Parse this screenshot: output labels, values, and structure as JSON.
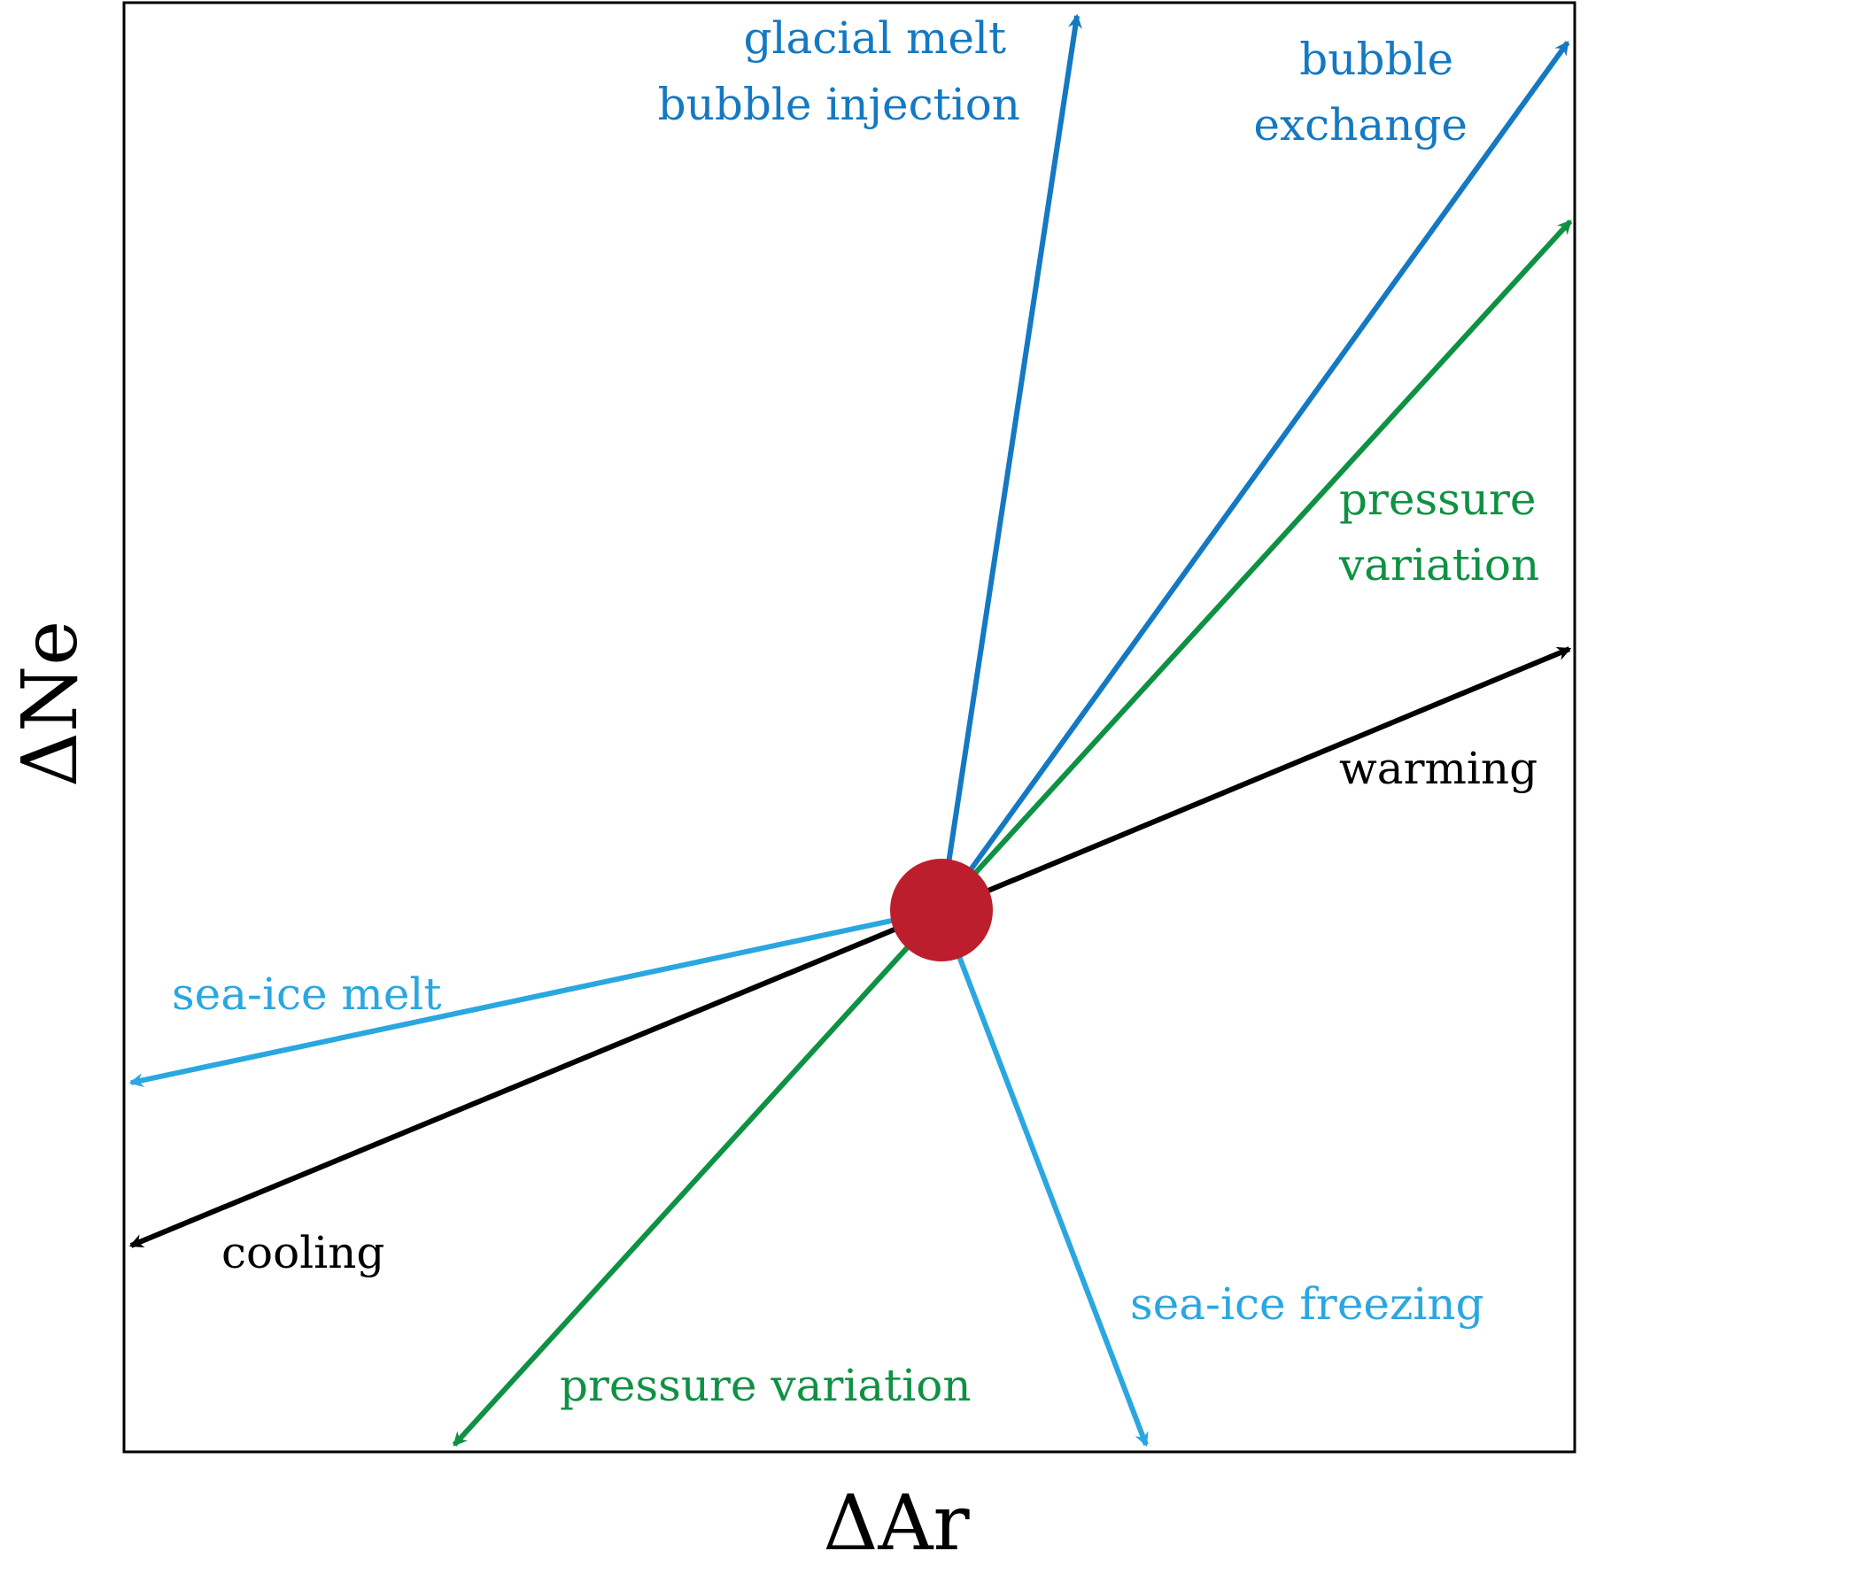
{
  "axes": {
    "x_label": "ΔAr",
    "y_label": "ΔNe"
  },
  "colors": {
    "dark_blue": "#1479c2",
    "light_blue": "#2aa7e0",
    "green": "#0f9144",
    "black": "#000000",
    "origin": "#bd1e2d"
  },
  "vectors": {
    "glacial_melt": {
      "label_line1": "glacial melt",
      "label_line2": "bubble injection"
    },
    "bubble_exchange": {
      "label_line1": "bubble",
      "label_line2": "exchange"
    },
    "pressure_up": {
      "label_line1": "pressure",
      "label_line2": "variation"
    },
    "warming": {
      "label": "warming"
    },
    "sea_ice_melt": {
      "label": "sea-ice melt"
    },
    "cooling": {
      "label": "cooling"
    },
    "sea_ice_freezing": {
      "label": "sea-ice freezing"
    },
    "pressure_down": {
      "label": "pressure variation"
    }
  }
}
